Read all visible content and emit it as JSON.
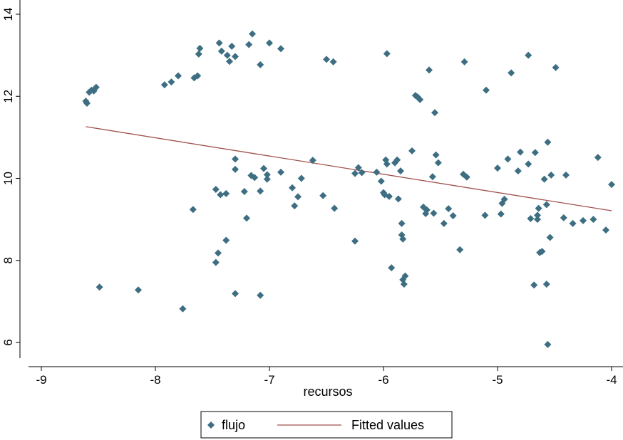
{
  "chart_data": {
    "type": "scatter",
    "title": "",
    "xlabel": "recursos",
    "ylabel": "",
    "xlim": [
      -9.15,
      -3.95
    ],
    "ylim": [
      5.7,
      14.3
    ],
    "xticks": [
      -9,
      -8,
      -7,
      -6,
      -5,
      -4
    ],
    "yticks": [
      6,
      8,
      10,
      12,
      14
    ],
    "grid": false,
    "legend_position": "bottom",
    "colors": {
      "scatter": "#3e6e82",
      "fit": "#a0524e"
    },
    "series": [
      {
        "name": "flujo",
        "type": "scatter",
        "points": [
          [
            -8.61,
            11.88
          ],
          [
            -8.6,
            11.83
          ],
          [
            -8.58,
            12.1
          ],
          [
            -8.56,
            12.15
          ],
          [
            -8.54,
            12.13
          ],
          [
            -8.52,
            12.22
          ],
          [
            -8.49,
            7.35
          ],
          [
            -8.15,
            7.28
          ],
          [
            -7.92,
            12.28
          ],
          [
            -7.86,
            12.35
          ],
          [
            -7.8,
            12.5
          ],
          [
            -7.76,
            6.82
          ],
          [
            -7.67,
            9.24
          ],
          [
            -7.66,
            12.45
          ],
          [
            -7.63,
            12.5
          ],
          [
            -7.62,
            13.03
          ],
          [
            -7.61,
            13.17
          ],
          [
            -7.47,
            9.73
          ],
          [
            -7.47,
            7.95
          ],
          [
            -7.45,
            8.18
          ],
          [
            -7.44,
            13.3
          ],
          [
            -7.43,
            9.6
          ],
          [
            -7.42,
            13.1
          ],
          [
            -7.38,
            9.63
          ],
          [
            -7.38,
            8.49
          ],
          [
            -7.37,
            13.0
          ],
          [
            -7.35,
            12.85
          ],
          [
            -7.33,
            13.22
          ],
          [
            -7.3,
            12.97
          ],
          [
            -7.3,
            10.47
          ],
          [
            -7.3,
            10.22
          ],
          [
            -7.3,
            7.19
          ],
          [
            -7.22,
            9.68
          ],
          [
            -7.2,
            9.03
          ],
          [
            -7.18,
            13.26
          ],
          [
            -7.16,
            10.07
          ],
          [
            -7.15,
            13.52
          ],
          [
            -7.13,
            10.02
          ],
          [
            -7.08,
            12.77
          ],
          [
            -7.08,
            9.69
          ],
          [
            -7.08,
            7.15
          ],
          [
            -7.05,
            10.24
          ],
          [
            -7.02,
            10.09
          ],
          [
            -7.02,
            9.98
          ],
          [
            -7.0,
            13.3
          ],
          [
            -6.9,
            13.16
          ],
          [
            -6.9,
            10.15
          ],
          [
            -6.8,
            9.77
          ],
          [
            -6.78,
            9.33
          ],
          [
            -6.75,
            9.55
          ],
          [
            -6.72,
            10.0
          ],
          [
            -6.62,
            10.44
          ],
          [
            -6.53,
            9.58
          ],
          [
            -6.5,
            12.9
          ],
          [
            -6.44,
            12.84
          ],
          [
            -6.43,
            9.27
          ],
          [
            -6.25,
            8.47
          ],
          [
            -6.25,
            10.12
          ],
          [
            -6.22,
            10.26
          ],
          [
            -6.19,
            10.14
          ],
          [
            -6.06,
            10.15
          ],
          [
            -6.02,
            9.93
          ],
          [
            -6.0,
            9.65
          ],
          [
            -5.99,
            9.6
          ],
          [
            -5.98,
            10.45
          ],
          [
            -5.97,
            13.04
          ],
          [
            -5.97,
            10.35
          ],
          [
            -5.95,
            9.56
          ],
          [
            -5.93,
            7.82
          ],
          [
            -5.9,
            10.38
          ],
          [
            -5.88,
            10.45
          ],
          [
            -5.87,
            9.5
          ],
          [
            -5.85,
            10.18
          ],
          [
            -5.84,
            8.9
          ],
          [
            -5.84,
            8.62
          ],
          [
            -5.83,
            8.52
          ],
          [
            -5.83,
            7.53
          ],
          [
            -5.82,
            7.42
          ],
          [
            -5.81,
            7.62
          ],
          [
            -5.75,
            10.67
          ],
          [
            -5.72,
            12.02
          ],
          [
            -5.7,
            11.98
          ],
          [
            -5.68,
            11.92
          ],
          [
            -5.65,
            9.3
          ],
          [
            -5.63,
            9.14
          ],
          [
            -5.62,
            9.23
          ],
          [
            -5.6,
            12.64
          ],
          [
            -5.57,
            10.04
          ],
          [
            -5.56,
            9.15
          ],
          [
            -5.55,
            11.6
          ],
          [
            -5.54,
            10.57
          ],
          [
            -5.52,
            10.38
          ],
          [
            -5.47,
            8.9
          ],
          [
            -5.43,
            9.26
          ],
          [
            -5.39,
            9.09
          ],
          [
            -5.33,
            8.26
          ],
          [
            -5.3,
            10.1
          ],
          [
            -5.29,
            12.84
          ],
          [
            -5.27,
            10.03
          ],
          [
            -5.11,
            9.1
          ],
          [
            -5.1,
            12.15
          ],
          [
            -5.0,
            10.25
          ],
          [
            -4.97,
            9.13
          ],
          [
            -4.96,
            9.39
          ],
          [
            -4.94,
            9.49
          ],
          [
            -4.91,
            10.47
          ],
          [
            -4.88,
            12.57
          ],
          [
            -4.82,
            10.18
          ],
          [
            -4.8,
            10.64
          ],
          [
            -4.73,
            13.0
          ],
          [
            -4.73,
            10.35
          ],
          [
            -4.71,
            9.02
          ],
          [
            -4.68,
            7.4
          ],
          [
            -4.67,
            10.63
          ],
          [
            -4.65,
            9.1
          ],
          [
            -4.65,
            9.0
          ],
          [
            -4.64,
            9.27
          ],
          [
            -4.63,
            8.19
          ],
          [
            -4.61,
            8.22
          ],
          [
            -4.59,
            9.98
          ],
          [
            -4.57,
            9.36
          ],
          [
            -4.57,
            7.42
          ],
          [
            -4.56,
            10.88
          ],
          [
            -4.56,
            5.95
          ],
          [
            -4.54,
            8.56
          ],
          [
            -4.53,
            10.08
          ],
          [
            -4.49,
            12.7
          ],
          [
            -4.42,
            9.04
          ],
          [
            -4.4,
            10.08
          ],
          [
            -4.34,
            8.9
          ],
          [
            -4.25,
            8.97
          ],
          [
            -4.16,
            9.0
          ],
          [
            -4.12,
            10.51
          ],
          [
            -4.05,
            8.74
          ],
          [
            -4.0,
            9.85
          ]
        ]
      },
      {
        "name": "Fitted values",
        "type": "line",
        "x": [
          -8.61,
          -4.0
        ],
        "y": [
          11.26,
          9.21
        ]
      }
    ]
  }
}
